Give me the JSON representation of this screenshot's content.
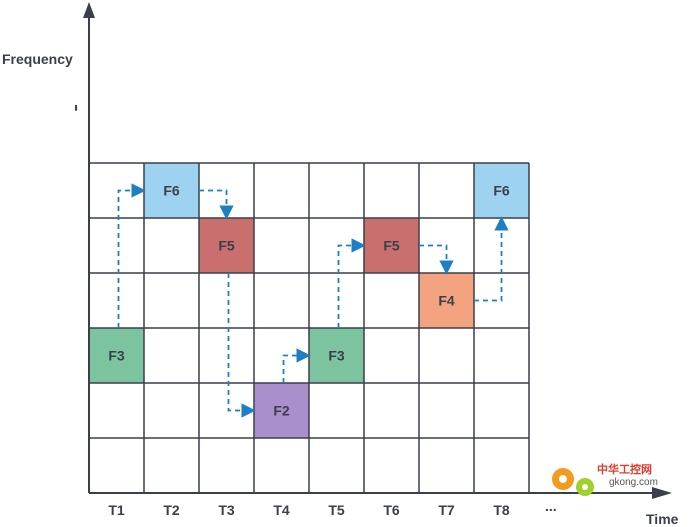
{
  "axes": {
    "y_label": "Frequency",
    "x_label": "Time",
    "x_ellipsis": "...",
    "y_ellipsis": "..."
  },
  "columns": [
    "T1",
    "T2",
    "T3",
    "T4",
    "T5",
    "T6",
    "T7",
    "T8"
  ],
  "row_count": 6,
  "cells": [
    {
      "label": "F3",
      "col": 1,
      "row": 4,
      "color": "#7cc49f"
    },
    {
      "label": "F6",
      "col": 2,
      "row": 1,
      "color": "#9dd3f1"
    },
    {
      "label": "F5",
      "col": 3,
      "row": 2,
      "color": "#c96f6d"
    },
    {
      "label": "F2",
      "col": 4,
      "row": 5,
      "color": "#a98fcc"
    },
    {
      "label": "F3",
      "col": 5,
      "row": 4,
      "color": "#7cc49f"
    },
    {
      "label": "F5",
      "col": 6,
      "row": 2,
      "color": "#c96f6d"
    },
    {
      "label": "F4",
      "col": 7,
      "row": 3,
      "color": "#f3a37f"
    },
    {
      "label": "F6",
      "col": 8,
      "row": 1,
      "color": "#9dd3f1"
    }
  ],
  "colors": {
    "grid": "#3b3f4a",
    "arrow": "#1f7fc4",
    "text": "#3b3f4a"
  },
  "watermark": {
    "brand": "中华工控网",
    "site": "gkong.com"
  }
}
